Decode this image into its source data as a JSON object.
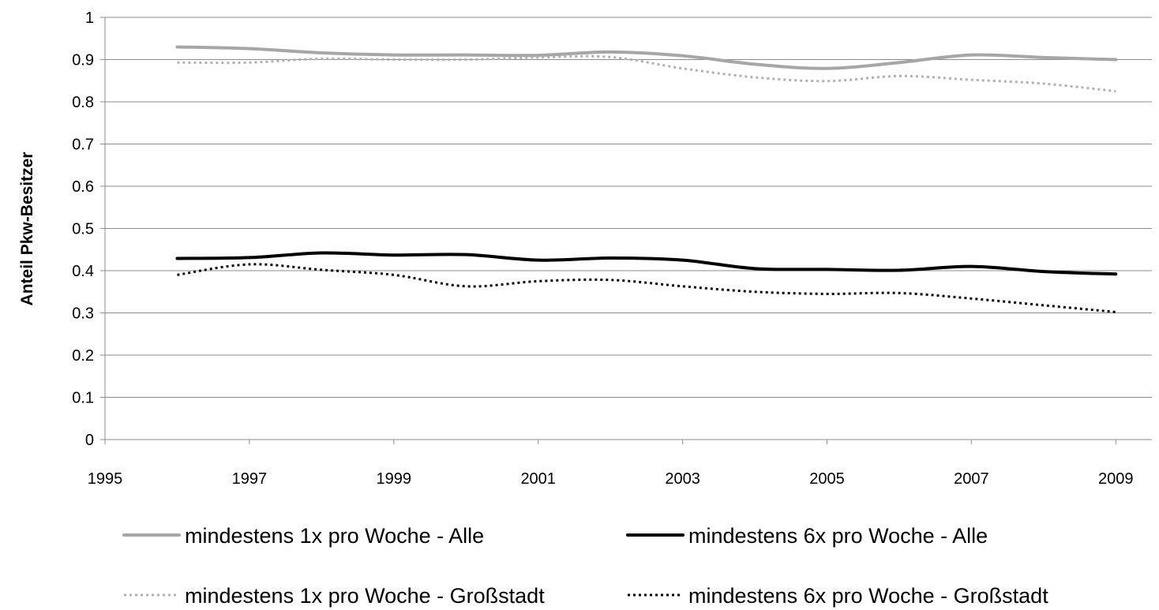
{
  "chart_data": {
    "type": "line",
    "title": "",
    "xlabel": "",
    "ylabel": "Anteil Pkw-Besitzer",
    "xlim": [
      1995,
      2009.5
    ],
    "ylim": [
      0,
      1
    ],
    "x_ticks": [
      1995,
      1997,
      1999,
      2001,
      2003,
      2005,
      2007,
      2009
    ],
    "y_ticks": [
      0,
      0.1,
      0.2,
      0.3,
      0.4,
      0.5,
      0.6,
      0.7,
      0.8,
      0.9,
      1
    ],
    "grid": "horizontal",
    "legend_position": "bottom",
    "x": [
      1996,
      1997,
      1998,
      1999,
      2000,
      2001,
      2002,
      2003,
      2004,
      2005,
      2006,
      2007,
      2008,
      2009
    ],
    "series": [
      {
        "name": "mindestens 1x pro Woche - Alle",
        "color": "#a6a6a6",
        "style": "solid",
        "values": [
          0.93,
          0.926,
          0.916,
          0.911,
          0.911,
          0.91,
          0.918,
          0.909,
          0.889,
          0.879,
          0.893,
          0.911,
          0.905,
          0.9
        ]
      },
      {
        "name": "mindestens 6x pro Woche - Alle",
        "color": "#000000",
        "style": "solid",
        "values": [
          0.429,
          0.431,
          0.442,
          0.437,
          0.438,
          0.425,
          0.43,
          0.425,
          0.405,
          0.403,
          0.401,
          0.41,
          0.398,
          0.392
        ]
      },
      {
        "name": "mindestens 1x pro Woche - Großstadt",
        "color": "#b0b0b0",
        "style": "dotted",
        "values": [
          0.893,
          0.893,
          0.902,
          0.9,
          0.9,
          0.905,
          0.906,
          0.879,
          0.858,
          0.849,
          0.861,
          0.852,
          0.843,
          0.825
        ]
      },
      {
        "name": "mindestens 6x pro Woche - Großstadt",
        "color": "#000000",
        "style": "dotted",
        "values": [
          0.39,
          0.415,
          0.402,
          0.39,
          0.363,
          0.375,
          0.378,
          0.363,
          0.35,
          0.345,
          0.347,
          0.334,
          0.318,
          0.302
        ]
      }
    ]
  }
}
